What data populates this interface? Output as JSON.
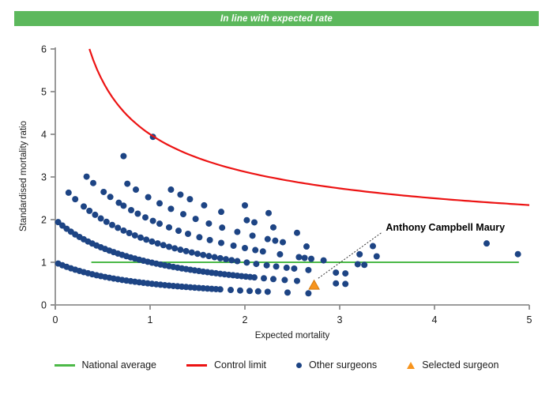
{
  "banner": {
    "text": "In line with expected rate",
    "color": "#5cb85c"
  },
  "chart_data": {
    "type": "scatter",
    "title": "",
    "xlabel": "Expected mortality",
    "ylabel": "Standardised mortality ratio",
    "xlim": [
      0,
      5
    ],
    "ylim": [
      0,
      6
    ],
    "x_ticks": [
      0,
      1,
      2,
      3,
      4,
      5
    ],
    "y_ticks": [
      0,
      1,
      2,
      3,
      4,
      5,
      6
    ],
    "grid": false,
    "legend_position": "bottom",
    "national_average": {
      "y": 1,
      "x_start": 0.38,
      "x_end": 4.89,
      "color": "#4cb948"
    },
    "control_limit": {
      "formula": "y = 1 + 3/sqrt(x)",
      "x_start": 0.36,
      "x_end": 5.0,
      "color": "#ec1313"
    },
    "other_surgeons": {
      "color": "#1d4484",
      "note": "each dot is one surgeon; dots lie on arcs y = n/(1+x); dense arcs listed as [start,end,step] of x, sparse dots as explicit x values",
      "bands": [
        {
          "n": 1,
          "dense": [
            0.03,
            1.78,
            0.045
          ],
          "xs": [
            1.85,
            1.95,
            2.05,
            2.14,
            2.24,
            2.45,
            2.67
          ]
        },
        {
          "n": 2,
          "dense": [
            0.03,
            2.1,
            0.045
          ],
          "xs": [
            2.2,
            2.3,
            2.42,
            2.55,
            2.96,
            3.06
          ]
        },
        {
          "n": 3,
          "dense": [
            0.3,
            1.92,
            0.06
          ],
          "xs": [
            0.14,
            0.21,
            2.02,
            2.12,
            2.23,
            2.33,
            2.44,
            2.52,
            2.67,
            2.96,
            3.06
          ]
        },
        {
          "n": 4,
          "xs": [
            0.33,
            0.4,
            0.51,
            0.58,
            0.67,
            0.72,
            0.8,
            0.87,
            0.95,
            1.03,
            1.1,
            1.2,
            1.3,
            1.4,
            1.52,
            1.63,
            1.75,
            1.88,
            2.0,
            2.11,
            2.19,
            2.37,
            2.57,
            2.63,
            2.7,
            2.83,
            3.19,
            3.26
          ]
        },
        {
          "n": 5,
          "xs": [
            0.76,
            0.85,
            0.98,
            1.1,
            1.22,
            1.35,
            1.48,
            1.62,
            1.76,
            1.92,
            2.08,
            2.24,
            2.32,
            2.4,
            2.65,
            3.21,
            3.39
          ]
        },
        {
          "n": 6,
          "xs": [
            0.72,
            1.22,
            1.32,
            1.42,
            1.57,
            1.75,
            2.02,
            2.1,
            2.3,
            2.55,
            3.35
          ]
        },
        {
          "n": 7,
          "xs": [
            2.0,
            2.25,
            4.88
          ]
        },
        {
          "n": 8,
          "xs": [
            1.03,
            4.55
          ]
        }
      ]
    },
    "selected_surgeon": {
      "name": "Anthony Campbell Maury",
      "x": 2.73,
      "y": 0.46,
      "color": "#f7941d",
      "edge_color": "#d4790f"
    },
    "annotation": {
      "text": "Anthony Campbell Maury",
      "label_x": 3.47,
      "label_y": 1.78
    },
    "axis_color": "#8e8e8e"
  },
  "legend": {
    "items": [
      {
        "label": "National average",
        "type": "line",
        "color": "#4cb948"
      },
      {
        "label": "Control limit",
        "type": "line",
        "color": "#ec1313"
      },
      {
        "label": "Other surgeons",
        "type": "dot",
        "color": "#1d4484"
      },
      {
        "label": "Selected surgeon",
        "type": "triangle",
        "color": "#f7941d"
      }
    ]
  }
}
